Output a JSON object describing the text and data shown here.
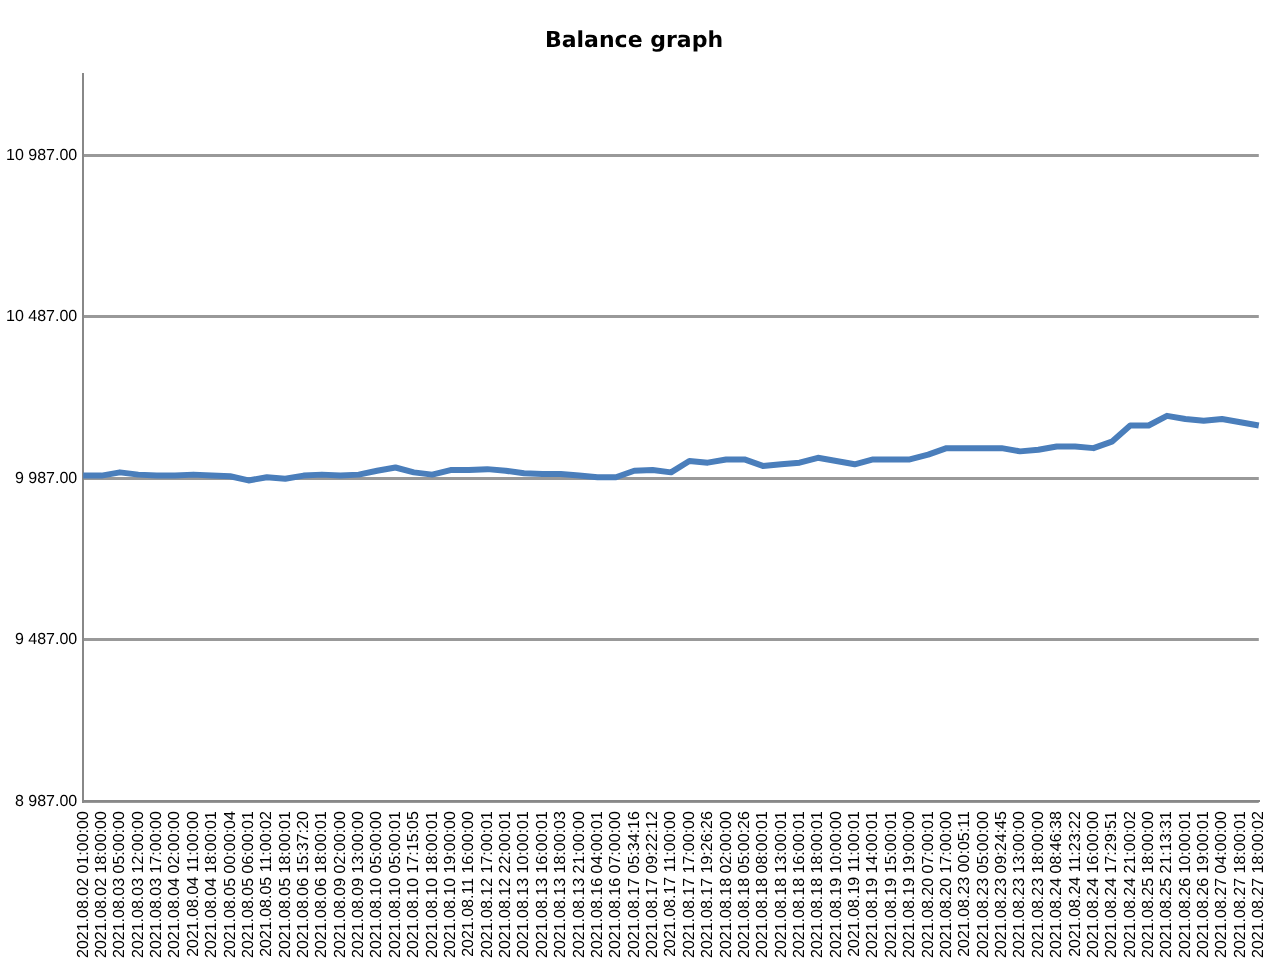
{
  "chart_data": {
    "type": "line",
    "title": "Balance graph",
    "categories": [
      "2021.08.02 01:00:00",
      "2021.08.02 18:00:00",
      "2021.08.03 05:00:00",
      "2021.08.03 12:00:00",
      "2021.08.03 17:00:00",
      "2021.08.04 02:00:00",
      "2021.08.04 11:00:00",
      "2021.08.04 18:00:01",
      "2021.08.05 00:00:04",
      "2021.08.05 06:00:01",
      "2021.08.05 11:00:02",
      "2021.08.05 18:00:01",
      "2021.08.06 15:37:20",
      "2021.08.06 18:00:01",
      "2021.08.09 02:00:00",
      "2021.08.09 13:00:00",
      "2021.08.10 05:00:00",
      "2021.08.10 05:00:01",
      "2021.08.10 17:15:05",
      "2021.08.10 18:00:01",
      "2021.08.10 19:00:00",
      "2021.08.11 16:00:00",
      "2021.08.12 17:00:01",
      "2021.08.12 22:00:01",
      "2021.08.13 10:00:01",
      "2021.08.13 16:00:01",
      "2021.08.13 18:00:03",
      "2021.08.13 21:00:00",
      "2021.08.16 04:00:01",
      "2021.08.16 07:00:00",
      "2021.08.17 05:34:16",
      "2021.08.17 09:22:12",
      "2021.08.17 11:00:00",
      "2021.08.17 17:00:00",
      "2021.08.17 19:26:26",
      "2021.08.18 02:00:00",
      "2021.08.18 05:00:26",
      "2021.08.18 08:00:01",
      "2021.08.18 13:00:01",
      "2021.08.18 16:00:01",
      "2021.08.18 18:00:01",
      "2021.08.19 10:00:00",
      "2021.08.19 11:00:01",
      "2021.08.19 14:00:01",
      "2021.08.19 15:00:01",
      "2021.08.19 19:00:00",
      "2021.08.20 07:00:01",
      "2021.08.20 17:00:00",
      "2021.08.23 00:05:11",
      "2021.08.23 05:00:00",
      "2021.08.23 09:24:45",
      "2021.08.23 13:00:00",
      "2021.08.23 18:00:00",
      "2021.08.24 08:46:38",
      "2021.08.24 11:23:22",
      "2021.08.24 16:00:00",
      "2021.08.24 17:29:51",
      "2021.08.24 21:00:02",
      "2021.08.25 18:00:00",
      "2021.08.25 21:13:31",
      "2021.08.26 10:00:01",
      "2021.08.26 19:00:01",
      "2021.08.27 04:00:00",
      "2021.08.27 18:00:01",
      "2021.08.27 18:00:02"
    ],
    "series": [
      {
        "color": "#4a7ebb",
        "values": [
          9995,
          9995,
          10005,
          9998,
          9995,
          9995,
          9998,
          9995,
          9993,
          9980,
          9990,
          9985,
          9995,
          9998,
          9995,
          9998,
          10010,
          10020,
          10005,
          9998,
          10012,
          10012,
          10015,
          10010,
          10002,
          10000,
          10000,
          9995,
          9990,
          9990,
          10010,
          10012,
          10005,
          10040,
          10035,
          10045,
          10045,
          10025,
          10030,
          10035,
          10050,
          10040,
          10030,
          10045,
          10045,
          10045,
          10060,
          10080,
          10080,
          10080,
          10080,
          10070,
          10075,
          10085,
          10085,
          10080,
          10100,
          10150,
          10150,
          10180,
          10170,
          10165,
          10170,
          10160,
          10150
        ]
      }
    ],
    "ylim": [
      8987,
      11237
    ],
    "yticks": [
      {
        "value": 8987,
        "label": "8 987.00"
      },
      {
        "value": 9487,
        "label": "9 487.00"
      },
      {
        "value": 9987,
        "label": "9 987.00"
      },
      {
        "value": 10487,
        "label": "10 487.00"
      },
      {
        "value": 10987,
        "label": "10 987.00"
      }
    ],
    "grid": "y",
    "legend": false,
    "marker": "none",
    "line_style": "solid"
  }
}
